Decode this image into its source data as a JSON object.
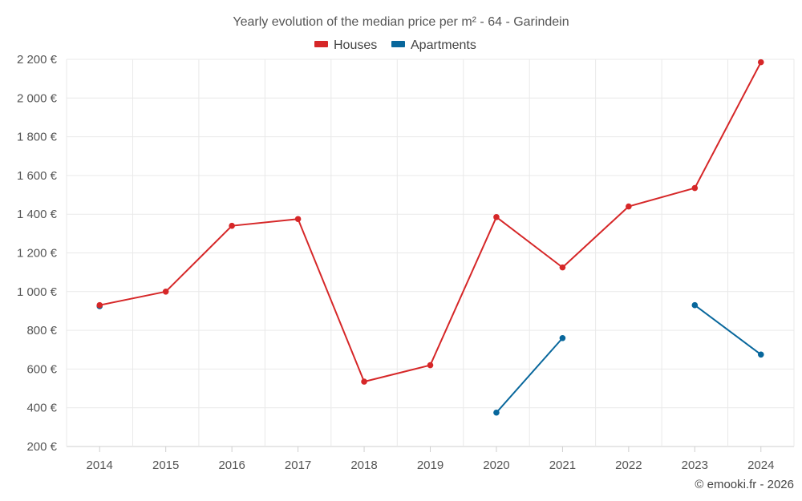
{
  "chart_data": {
    "type": "line",
    "title": "Yearly evolution of the median price per m² - 64 - Garindein",
    "xlabel": "",
    "ylabel": "",
    "categories": [
      "2014",
      "2015",
      "2016",
      "2017",
      "2018",
      "2019",
      "2020",
      "2021",
      "2022",
      "2023",
      "2024"
    ],
    "y_ticks": [
      200,
      400,
      600,
      800,
      1000,
      1200,
      1400,
      1600,
      1800,
      2000,
      2200
    ],
    "y_tick_labels": [
      "200 €",
      "400 €",
      "600 €",
      "800 €",
      "1 000 €",
      "1 200 €",
      "1 400 €",
      "1 600 €",
      "1 800 €",
      "2 000 €",
      "2 200 €"
    ],
    "ylim": [
      200,
      2200
    ],
    "grid": true,
    "legend_position": "top-center",
    "series": [
      {
        "name": "Houses",
        "color": "#d62728",
        "values": [
          930,
          1000,
          1340,
          1375,
          535,
          620,
          1385,
          1125,
          1440,
          1535,
          2185
        ]
      },
      {
        "name": "Apartments",
        "color": "#08679c",
        "values": [
          925,
          null,
          null,
          null,
          null,
          null,
          375,
          760,
          null,
          930,
          675
        ]
      }
    ]
  },
  "credit": "© emooki.fr - 2026"
}
